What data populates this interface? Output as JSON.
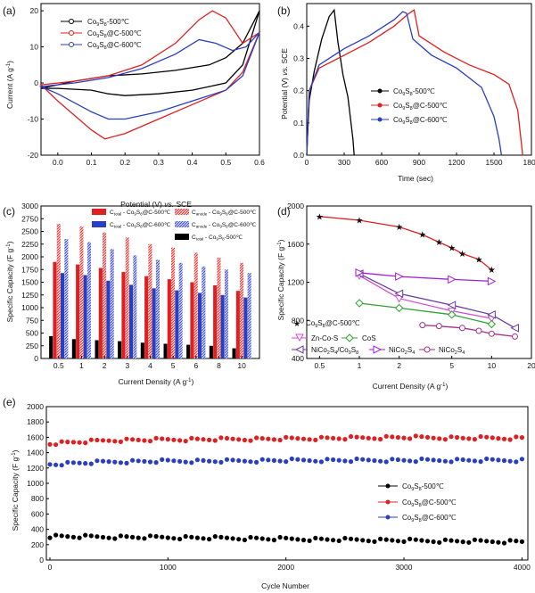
{
  "chart_data": [
    {
      "panel": "(a)",
      "type": "line",
      "xlabel": "Potential (V) vs. SCE",
      "ylabel": "Current (A g⁻¹)",
      "xlim": [
        -0.05,
        0.6
      ],
      "ylim": [
        -20,
        22
      ],
      "xticks": [
        "0.0",
        "0.1",
        "0.2",
        "0.3",
        "0.4",
        "0.5",
        "0.6"
      ],
      "yticks": [
        "-20",
        "-10",
        "0",
        "10",
        "20"
      ],
      "series": [
        {
          "name": "Co₉S₈-500℃",
          "color": "#000000",
          "marker": "circle",
          "x": [
            -0.05,
            0.05,
            0.15,
            0.25,
            0.35,
            0.45,
            0.5,
            0.55,
            0.6,
            0.55,
            0.5,
            0.45,
            0.4,
            0.3,
            0.2,
            0.15,
            0.1,
            0.0,
            -0.05
          ],
          "y": [
            -1.5,
            0.5,
            2,
            2.5,
            3.5,
            5,
            7,
            11,
            20,
            5,
            0,
            -1,
            -2,
            -3,
            -3.5,
            -3,
            -2,
            -1.5,
            -1.5
          ]
        },
        {
          "name": "Co₉S₈@C-500℃",
          "color": "#e02020",
          "marker": "circle",
          "x": [
            -0.05,
            0.05,
            0.15,
            0.25,
            0.35,
            0.42,
            0.46,
            0.5,
            0.55,
            0.6,
            0.55,
            0.5,
            0.45,
            0.4,
            0.3,
            0.2,
            0.14,
            0.1,
            0.0,
            -0.05
          ],
          "y": [
            -0.5,
            0.5,
            2,
            5,
            11,
            17.5,
            20,
            18,
            11,
            14,
            3,
            -2,
            -4,
            -6,
            -10,
            -14,
            -15.5,
            -13,
            -5,
            -0.5
          ]
        },
        {
          "name": "Co₉S₈@C-600℃",
          "color": "#2a3fc0",
          "marker": "circle",
          "x": [
            -0.05,
            0.05,
            0.15,
            0.25,
            0.35,
            0.42,
            0.47,
            0.52,
            0.56,
            0.6,
            0.55,
            0.5,
            0.45,
            0.4,
            0.3,
            0.2,
            0.15,
            0.1,
            0.0,
            -0.05
          ],
          "y": [
            -1,
            0,
            1.5,
            4,
            8,
            12,
            11,
            9,
            10,
            14,
            2,
            -2,
            -3.5,
            -5,
            -8,
            -10,
            -10,
            -8,
            -3,
            -1
          ]
        }
      ]
    },
    {
      "panel": "(b)",
      "type": "line",
      "xlabel": "Time (sec)",
      "ylabel": "Potential (V) vs. SCE",
      "xlim": [
        0,
        1800
      ],
      "ylim": [
        0,
        0.47
      ],
      "xticks": [
        "0",
        "300",
        "600",
        "900",
        "1200",
        "1500",
        "1800"
      ],
      "yticks": [
        "0.0",
        "0.1",
        "0.2",
        "0.3",
        "0.4"
      ],
      "series": [
        {
          "name": "Co₉S₈-500℃",
          "color": "#000000",
          "marker": "circle",
          "x": [
            0,
            20,
            60,
            120,
            180,
            220,
            250,
            290,
            330,
            370,
            380
          ],
          "y": [
            0,
            0.17,
            0.26,
            0.36,
            0.43,
            0.45,
            0.35,
            0.25,
            0.18,
            0.05,
            0
          ]
        },
        {
          "name": "Co₉S₈@C-500℃",
          "color": "#e02020",
          "marker": "circle",
          "x": [
            0,
            20,
            100,
            300,
            500,
            700,
            820,
            860,
            900,
            1100,
            1300,
            1500,
            1620,
            1690,
            1730
          ],
          "y": [
            0,
            0.2,
            0.27,
            0.31,
            0.35,
            0.4,
            0.44,
            0.45,
            0.37,
            0.32,
            0.28,
            0.25,
            0.22,
            0.14,
            0
          ]
        },
        {
          "name": "Co₉S₈@C-600℃",
          "color": "#2a3fc0",
          "marker": "circle",
          "x": [
            0,
            20,
            100,
            300,
            500,
            700,
            770,
            800,
            850,
            1000,
            1200,
            1400,
            1500,
            1540,
            1560
          ],
          "y": [
            0,
            0.2,
            0.28,
            0.33,
            0.37,
            0.42,
            0.445,
            0.44,
            0.36,
            0.31,
            0.27,
            0.21,
            0.12,
            0.05,
            0
          ]
        }
      ]
    },
    {
      "panel": "(c)",
      "type": "bar",
      "xlabel": "Current Density (A g⁻¹)",
      "ylabel": "Specific Capacity (F g⁻¹)",
      "ylim": [
        0,
        3000
      ],
      "yticks": [
        "0",
        "250",
        "500",
        "750",
        "1000",
        "1250",
        "1500",
        "1750",
        "2000",
        "2250",
        "2500",
        "2750",
        "3000"
      ],
      "categories": [
        "0.5",
        "1",
        "2",
        "3",
        "4",
        "5",
        "6",
        "8",
        "10"
      ],
      "series": [
        {
          "name": "C_total - Co₉S₈@C-500℃",
          "color": "#e02020",
          "pattern": "solid",
          "values": [
            1900,
            1850,
            1780,
            1700,
            1620,
            1560,
            1500,
            1440,
            1330
          ]
        },
        {
          "name": "C_anode - Co₉S₈@C-500℃",
          "color": "#e02020",
          "pattern": "hatched",
          "values": [
            2650,
            2600,
            2480,
            2380,
            2250,
            2180,
            2080,
            1980,
            1880
          ]
        },
        {
          "name": "C_total - Co₉S₈@C-600℃",
          "color": "#2a3fc0",
          "pattern": "solid",
          "values": [
            1680,
            1640,
            1530,
            1450,
            1380,
            1340,
            1290,
            1250,
            1200
          ]
        },
        {
          "name": "C_anode - Co₉S₈@C-600℃",
          "color": "#2a3fc0",
          "pattern": "hatched",
          "values": [
            2350,
            2290,
            2150,
            2030,
            1940,
            1880,
            1810,
            1750,
            1680
          ]
        },
        {
          "name": "C_total - Co₉S₈-500℃",
          "color": "#000000",
          "pattern": "solid",
          "values": [
            440,
            380,
            360,
            340,
            310,
            290,
            270,
            250,
            200
          ]
        }
      ],
      "legend_labels": {
        "red_total": {
          "pre": "C",
          "sub1": "total",
          "mid": " - Co",
          "sub2": "9",
          "mid2": "S",
          "sub3": "8",
          "post": "@C-500℃"
        },
        "red_anode": {
          "pre": "C",
          "sub1": "anode",
          "mid": " - Co",
          "sub2": "9",
          "mid2": "S",
          "sub3": "8",
          "post": "@C-500℃"
        },
        "blue_total": {
          "pre": "C",
          "sub1": "total",
          "mid": " - Co",
          "sub2": "9",
          "mid2": "S",
          "sub3": "8",
          "post": "@C-600℃"
        },
        "blue_anode": {
          "pre": "C",
          "sub1": "anode",
          "mid": " - Co",
          "sub2": "9",
          "mid2": "S",
          "sub3": "8",
          "post": "@C-600℃"
        },
        "black_total": {
          "pre": "C",
          "sub1": "total",
          "mid": " - Co",
          "sub2": "9",
          "mid2": "S",
          "sub3": "8",
          "post": "-500℃"
        }
      }
    },
    {
      "panel": "(d)",
      "type": "line",
      "xscale": "log",
      "xlabel": "Current Density (A g⁻¹)",
      "ylabel": "Specific Capacity (F g⁻¹)",
      "xlim": [
        0.4,
        20
      ],
      "ylim": [
        400,
        2000
      ],
      "xticks": [
        "0.5",
        "1",
        "2",
        "5",
        "10",
        "20"
      ],
      "yticks": [
        "400",
        "800",
        "1200",
        "1600",
        "2000"
      ],
      "series": [
        {
          "name": "Co₉S₈@C-500℃",
          "color": "#e02020",
          "marker": "star",
          "filled": true,
          "x": [
            0.5,
            1,
            2,
            3,
            4,
            5,
            6,
            8,
            10
          ],
          "y": [
            1890,
            1850,
            1780,
            1700,
            1620,
            1560,
            1500,
            1440,
            1330
          ]
        },
        {
          "name": "Zn-Co-S",
          "color": "#d050d0",
          "marker": "tri-down",
          "filled": false,
          "x": [
            1,
            2,
            5,
            10
          ],
          "y": [
            1270,
            1030,
            900,
            820
          ]
        },
        {
          "name": "CoS",
          "color": "#30a030",
          "marker": "diamond",
          "filled": false,
          "x": [
            1,
            2,
            5,
            10
          ],
          "y": [
            980,
            930,
            860,
            760
          ]
        },
        {
          "name": "NiCo₂S₄/Co₉S₈",
          "color": "#6a3aa0",
          "marker": "tri-left",
          "filled": false,
          "x": [
            1,
            2,
            5,
            10,
            15
          ],
          "y": [
            1290,
            1080,
            960,
            860,
            720
          ]
        },
        {
          "name": "NiCo₂S₄",
          "color": "#a020d0",
          "marker": "tri-right",
          "filled": false,
          "x": [
            1,
            2,
            5,
            10
          ],
          "y": [
            1300,
            1260,
            1230,
            1210
          ]
        },
        {
          "name": "NiCo₂S₄",
          "color": "#a0308a",
          "marker": "circle",
          "filled": false,
          "x": [
            3,
            4,
            6,
            8,
            10,
            15
          ],
          "y": [
            750,
            740,
            720,
            690,
            660,
            630
          ]
        }
      ]
    },
    {
      "panel": "(e)",
      "type": "scatter",
      "xlabel": "Cycle Number",
      "ylabel": "Specific Capacity (F g⁻¹)",
      "xlim": [
        -30,
        4050
      ],
      "ylim": [
        0,
        2000
      ],
      "xticks": [
        "0",
        "1000",
        "2000",
        "3000",
        "4000"
      ],
      "yticks": [
        "0",
        "200",
        "400",
        "600",
        "800",
        "1000",
        "1200",
        "1400",
        "1600",
        "1800",
        "2000"
      ],
      "series": [
        {
          "name": "Co₉S₈-500℃",
          "color": "#000000",
          "marker": "circle",
          "x": [
            0,
            500,
            1000,
            1500,
            2000,
            2500,
            3000,
            3500,
            4000
          ],
          "y": [
            310,
            300,
            295,
            285,
            275,
            265,
            255,
            245,
            240
          ]
        },
        {
          "name": "Co₉S₈@C-500℃",
          "color": "#e02020",
          "marker": "circle",
          "x": [
            0,
            500,
            1000,
            1500,
            2000,
            2500,
            3000,
            3500,
            4000
          ],
          "y": [
            1520,
            1560,
            1570,
            1575,
            1580,
            1590,
            1600,
            1590,
            1590
          ]
        },
        {
          "name": "Co₉S₈@C-600℃",
          "color": "#2a3fc0",
          "marker": "circle",
          "x": [
            0,
            500,
            1000,
            1500,
            2000,
            2500,
            3000,
            3500,
            4000
          ],
          "y": [
            1250,
            1280,
            1290,
            1290,
            1300,
            1300,
            1300,
            1300,
            1300
          ]
        }
      ]
    }
  ],
  "legend_chem": {
    "Co9S8_500": {
      "a": "Co",
      "s1": "9",
      "b": "S",
      "s2": "8",
      "c": "-500℃"
    },
    "Co9S8C_500": {
      "a": "Co",
      "s1": "9",
      "b": "S",
      "s2": "8",
      "c": "@C-500℃"
    },
    "Co9S8C_600": {
      "a": "Co",
      "s1": "9",
      "b": "S",
      "s2": "8",
      "c": "@C-600℃"
    },
    "NiCo2S4_Co9S8": {
      "a": "NiCo",
      "s1": "2",
      "b": "S",
      "s2": "4",
      "c": "/Co",
      "s3": "9",
      "d": "S",
      "s4": "8"
    },
    "NiCo2S4": {
      "a": "NiCo",
      "s1": "2",
      "b": "S",
      "s2": "4"
    }
  },
  "text": {
    "panel_a": "(a)",
    "panel_b": "(b)",
    "panel_c": "(c)",
    "panel_d": "(d)",
    "panel_e": "(e)",
    "a_xlabel_pre": "Potential (V) ",
    "a_xlabel_vs": "vs.",
    "a_xlabel_post": " SCE",
    "a_ylabel_pre": "Current (A g",
    "a_ylabel_exp": "-1",
    "a_ylabel_post": ")",
    "b_xlabel": "Time (sec)",
    "b_ylabel_pre": "Potential (V) ",
    "b_ylabel_vs": "vs.",
    "b_ylabel_post": " SCE",
    "c_xlabel_pre": "Current Density (A g",
    "c_xlabel_exp": "-1",
    "c_xlabel_post": ")",
    "c_ylabel_pre": "Specific Capacity (F g",
    "c_ylabel_exp": "-1",
    "c_ylabel_post": ")",
    "d_xlabel_pre": "Current Density (A g",
    "d_xlabel_exp": "-1",
    "d_xlabel_post": ")",
    "d_ylabel_pre": "Specific Capacity (F g",
    "d_ylabel_exp": "-1",
    "d_ylabel_post": ")",
    "e_xlabel": "Cycle Number",
    "e_ylabel_pre": "Specific Capacity (F g",
    "e_ylabel_exp": "-1",
    "e_ylabel_post": ")",
    "d_zncos": "Zn-Co-S",
    "d_cos": "CoS"
  }
}
